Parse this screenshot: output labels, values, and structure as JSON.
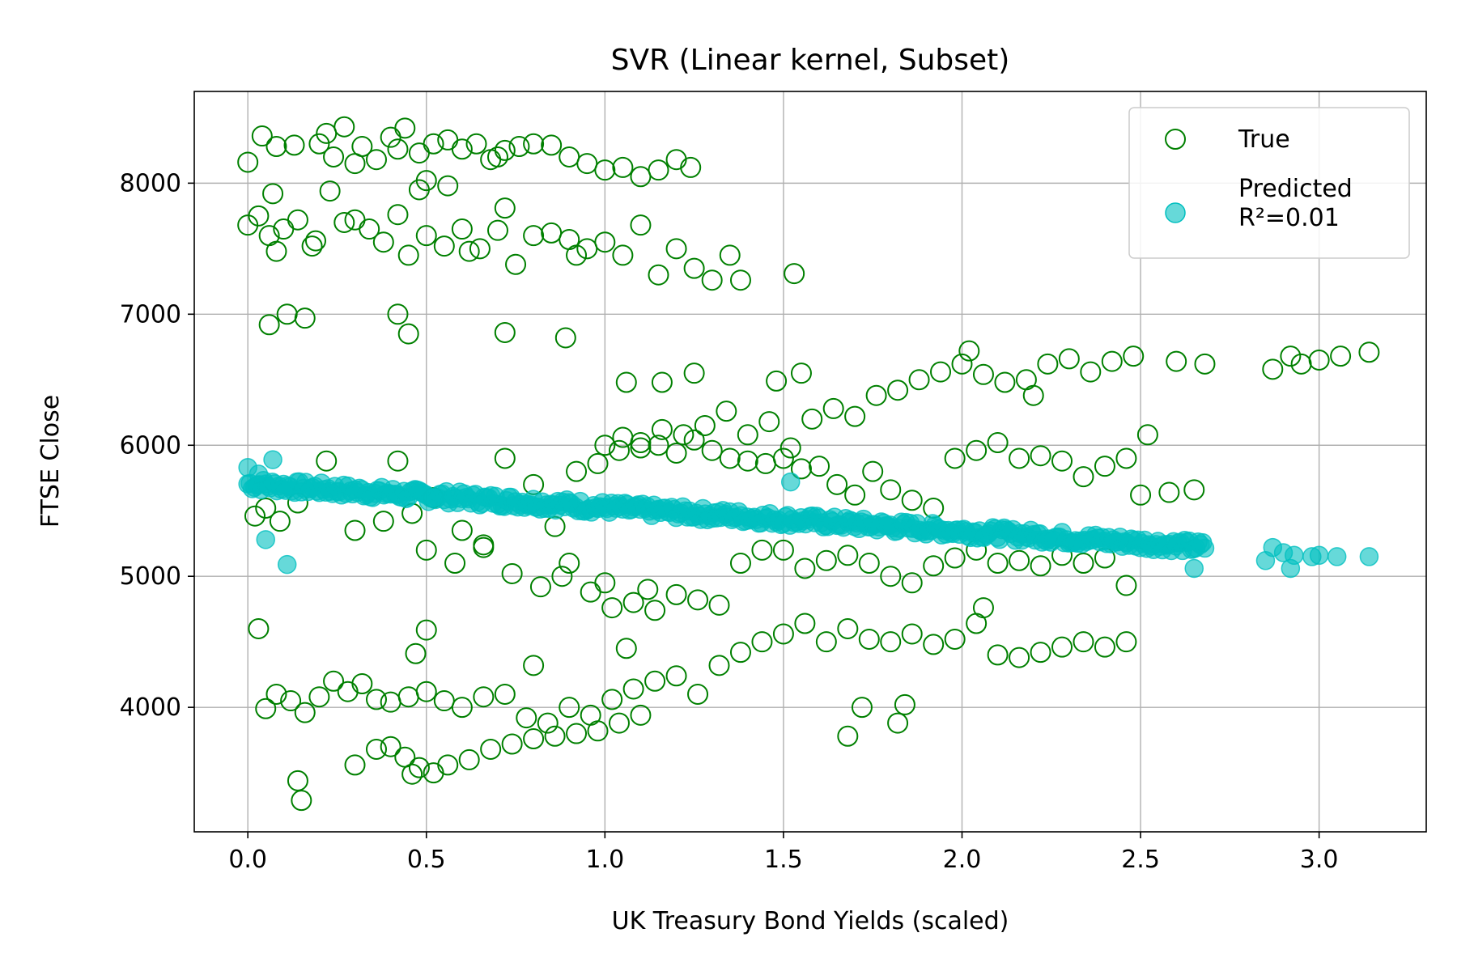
{
  "chart_data": {
    "type": "scatter",
    "title": "SVR (Linear kernel, Subset)",
    "xlabel": "UK Treasury Bond Yields (scaled)",
    "ylabel": "FTSE Close",
    "xlim": [
      -0.15,
      3.3
    ],
    "ylim": [
      3050,
      8700
    ],
    "xticks": [
      0.0,
      0.5,
      1.0,
      1.5,
      2.0,
      2.5,
      3.0
    ],
    "xtick_labels": [
      "0.0",
      "0.5",
      "1.0",
      "1.5",
      "2.0",
      "2.5",
      "3.0"
    ],
    "yticks": [
      4000,
      5000,
      6000,
      7000,
      8000
    ],
    "ytick_labels": [
      "4000",
      "5000",
      "6000",
      "7000",
      "8000"
    ],
    "grid": true,
    "legend_position": "top-right",
    "series": [
      {
        "name": "True",
        "marker": "open-circle",
        "color": "#008000",
        "points": [
          [
            0.0,
            8160
          ],
          [
            0.04,
            8360
          ],
          [
            0.08,
            8280
          ],
          [
            0.13,
            8290
          ],
          [
            0.2,
            8300
          ],
          [
            0.24,
            8200
          ],
          [
            0.27,
            8430
          ],
          [
            0.32,
            8280
          ],
          [
            0.36,
            8180
          ],
          [
            0.4,
            8350
          ],
          [
            0.44,
            8420
          ],
          [
            0.48,
            8230
          ],
          [
            0.52,
            8300
          ],
          [
            0.56,
            8330
          ],
          [
            0.6,
            8260
          ],
          [
            0.64,
            8300
          ],
          [
            0.68,
            8180
          ],
          [
            0.72,
            8250
          ],
          [
            0.76,
            8280
          ],
          [
            0.8,
            8300
          ],
          [
            0.85,
            8290
          ],
          [
            0.9,
            8200
          ],
          [
            0.95,
            8150
          ],
          [
            1.0,
            8100
          ],
          [
            1.05,
            8120
          ],
          [
            1.1,
            8050
          ],
          [
            1.15,
            8100
          ],
          [
            1.2,
            8180
          ],
          [
            1.24,
            8120
          ],
          [
            0.5,
            8020
          ],
          [
            0.56,
            7980
          ],
          [
            0.3,
            8150
          ],
          [
            0.22,
            8380
          ],
          [
            0.42,
            8260
          ],
          [
            0.7,
            8200
          ],
          [
            0.0,
            7680
          ],
          [
            0.03,
            7750
          ],
          [
            0.06,
            7600
          ],
          [
            0.1,
            7650
          ],
          [
            0.14,
            7720
          ],
          [
            0.19,
            7560
          ],
          [
            0.23,
            7940
          ],
          [
            0.27,
            7700
          ],
          [
            0.3,
            7720
          ],
          [
            0.34,
            7650
          ],
          [
            0.38,
            7550
          ],
          [
            0.42,
            7760
          ],
          [
            0.45,
            7450
          ],
          [
            0.5,
            7600
          ],
          [
            0.55,
            7520
          ],
          [
            0.6,
            7650
          ],
          [
            0.65,
            7500
          ],
          [
            0.7,
            7640
          ],
          [
            0.75,
            7380
          ],
          [
            0.8,
            7600
          ],
          [
            0.85,
            7620
          ],
          [
            0.9,
            7570
          ],
          [
            0.95,
            7500
          ],
          [
            1.0,
            7550
          ],
          [
            1.05,
            7450
          ],
          [
            1.1,
            7680
          ],
          [
            1.15,
            7300
          ],
          [
            1.2,
            7500
          ],
          [
            1.25,
            7350
          ],
          [
            1.3,
            7260
          ],
          [
            1.35,
            7450
          ],
          [
            1.38,
            7260
          ],
          [
            1.53,
            7310
          ],
          [
            0.07,
            7920
          ],
          [
            0.08,
            7480
          ],
          [
            0.18,
            7520
          ],
          [
            0.48,
            7950
          ],
          [
            0.62,
            7480
          ],
          [
            0.72,
            7810
          ],
          [
            0.92,
            7450
          ],
          [
            0.06,
            6920
          ],
          [
            0.11,
            7000
          ],
          [
            0.16,
            6970
          ],
          [
            0.42,
            7000
          ],
          [
            0.45,
            6850
          ],
          [
            0.72,
            6860
          ],
          [
            0.89,
            6820
          ],
          [
            0.02,
            5460
          ],
          [
            0.05,
            5520
          ],
          [
            0.09,
            5420
          ],
          [
            0.14,
            5560
          ],
          [
            0.22,
            5880
          ],
          [
            0.3,
            5350
          ],
          [
            0.38,
            5420
          ],
          [
            0.42,
            5880
          ],
          [
            0.46,
            5480
          ],
          [
            0.52,
            5600
          ],
          [
            0.6,
            5350
          ],
          [
            0.66,
            5220
          ],
          [
            0.72,
            5900
          ],
          [
            0.8,
            5700
          ],
          [
            0.86,
            5380
          ],
          [
            0.92,
            5800
          ],
          [
            0.98,
            5860
          ],
          [
            1.04,
            5960
          ],
          [
            1.1,
            6020
          ],
          [
            1.16,
            6120
          ],
          [
            1.22,
            6080
          ],
          [
            1.28,
            6150
          ],
          [
            1.34,
            6260
          ],
          [
            1.4,
            6080
          ],
          [
            1.46,
            6180
          ],
          [
            1.52,
            5980
          ],
          [
            1.58,
            6200
          ],
          [
            1.64,
            6280
          ],
          [
            1.7,
            6220
          ],
          [
            1.76,
            6380
          ],
          [
            1.82,
            6420
          ],
          [
            1.88,
            6500
          ],
          [
            1.94,
            6560
          ],
          [
            2.0,
            6620
          ],
          [
            2.06,
            6540
          ],
          [
            2.12,
            6480
          ],
          [
            2.18,
            6500
          ],
          [
            2.24,
            6620
          ],
          [
            2.3,
            6660
          ],
          [
            2.36,
            6560
          ],
          [
            2.42,
            6640
          ],
          [
            2.48,
            6680
          ],
          [
            2.6,
            6640
          ],
          [
            2.68,
            6620
          ],
          [
            2.87,
            6580
          ],
          [
            2.92,
            6680
          ],
          [
            2.95,
            6620
          ],
          [
            3.0,
            6650
          ],
          [
            3.06,
            6680
          ],
          [
            3.14,
            6710
          ],
          [
            0.5,
            5200
          ],
          [
            0.58,
            5100
          ],
          [
            0.66,
            5240
          ],
          [
            0.74,
            5020
          ],
          [
            0.82,
            4920
          ],
          [
            0.88,
            5000
          ],
          [
            0.96,
            4880
          ],
          [
            1.02,
            4760
          ],
          [
            1.08,
            4800
          ],
          [
            1.14,
            4740
          ],
          [
            1.2,
            4860
          ],
          [
            1.26,
            4820
          ],
          [
            1.32,
            4780
          ],
          [
            1.38,
            5100
          ],
          [
            1.44,
            5200
          ],
          [
            1.5,
            5200
          ],
          [
            1.56,
            5060
          ],
          [
            1.62,
            5120
          ],
          [
            1.68,
            5160
          ],
          [
            1.74,
            5100
          ],
          [
            1.8,
            5000
          ],
          [
            1.86,
            4950
          ],
          [
            1.92,
            5080
          ],
          [
            1.98,
            5140
          ],
          [
            2.04,
            5200
          ],
          [
            2.1,
            5100
          ],
          [
            2.16,
            5120
          ],
          [
            2.22,
            5080
          ],
          [
            2.28,
            5160
          ],
          [
            2.34,
            5100
          ],
          [
            2.4,
            5140
          ],
          [
            2.46,
            4930
          ],
          [
            0.9,
            5100
          ],
          [
            1.0,
            4950
          ],
          [
            1.12,
            4900
          ],
          [
            1.0,
            6000
          ],
          [
            1.05,
            6060
          ],
          [
            1.1,
            5980
          ],
          [
            1.15,
            6000
          ],
          [
            1.2,
            5940
          ],
          [
            1.25,
            6040
          ],
          [
            1.3,
            5960
          ],
          [
            1.35,
            5900
          ],
          [
            1.4,
            5880
          ],
          [
            1.45,
            5860
          ],
          [
            1.5,
            5900
          ],
          [
            1.55,
            5820
          ],
          [
            1.6,
            5840
          ],
          [
            1.65,
            5700
          ],
          [
            1.7,
            5620
          ],
          [
            1.75,
            5800
          ],
          [
            1.8,
            5660
          ],
          [
            1.86,
            5580
          ],
          [
            1.92,
            5520
          ],
          [
            1.98,
            5900
          ],
          [
            2.04,
            5960
          ],
          [
            2.1,
            6020
          ],
          [
            2.16,
            5900
          ],
          [
            2.22,
            5920
          ],
          [
            2.28,
            5880
          ],
          [
            2.34,
            5760
          ],
          [
            2.4,
            5840
          ],
          [
            2.46,
            5900
          ],
          [
            2.52,
            6080
          ],
          [
            2.58,
            5640
          ],
          [
            2.65,
            5660
          ],
          [
            2.5,
            5620
          ],
          [
            1.06,
            6480
          ],
          [
            1.16,
            6480
          ],
          [
            1.25,
            6550
          ],
          [
            1.48,
            6490
          ],
          [
            1.55,
            6550
          ],
          [
            2.02,
            6720
          ],
          [
            2.2,
            6380
          ],
          [
            0.03,
            4600
          ],
          [
            0.05,
            3990
          ],
          [
            0.08,
            4100
          ],
          [
            0.12,
            4050
          ],
          [
            0.16,
            3960
          ],
          [
            0.2,
            4080
          ],
          [
            0.24,
            4200
          ],
          [
            0.28,
            4120
          ],
          [
            0.32,
            4180
          ],
          [
            0.36,
            4060
          ],
          [
            0.4,
            4040
          ],
          [
            0.45,
            4080
          ],
          [
            0.5,
            4120
          ],
          [
            0.55,
            4050
          ],
          [
            0.6,
            4000
          ],
          [
            0.66,
            4080
          ],
          [
            0.72,
            4100
          ],
          [
            0.78,
            3920
          ],
          [
            0.84,
            3880
          ],
          [
            0.9,
            4000
          ],
          [
            0.96,
            3940
          ],
          [
            1.02,
            4060
          ],
          [
            1.08,
            4140
          ],
          [
            1.14,
            4200
          ],
          [
            1.2,
            4240
          ],
          [
            1.26,
            4100
          ],
          [
            1.32,
            4320
          ],
          [
            1.38,
            4420
          ],
          [
            1.44,
            4500
          ],
          [
            1.5,
            4560
          ],
          [
            1.56,
            4640
          ],
          [
            1.62,
            4500
          ],
          [
            1.68,
            4600
          ],
          [
            1.74,
            4520
          ],
          [
            1.8,
            4500
          ],
          [
            1.86,
            4560
          ],
          [
            1.92,
            4480
          ],
          [
            1.98,
            4520
          ],
          [
            2.04,
            4640
          ],
          [
            2.1,
            4400
          ],
          [
            2.16,
            4380
          ],
          [
            2.22,
            4420
          ],
          [
            2.28,
            4460
          ],
          [
            2.34,
            4500
          ],
          [
            2.4,
            4460
          ],
          [
            2.46,
            4500
          ],
          [
            0.47,
            4410
          ],
          [
            0.5,
            4590
          ],
          [
            0.8,
            4320
          ],
          [
            1.06,
            4450
          ],
          [
            1.68,
            3780
          ],
          [
            1.72,
            4000
          ],
          [
            1.82,
            3880
          ],
          [
            1.84,
            4020
          ],
          [
            2.06,
            4760
          ],
          [
            0.3,
            3560
          ],
          [
            0.36,
            3680
          ],
          [
            0.4,
            3700
          ],
          [
            0.44,
            3620
          ],
          [
            0.48,
            3540
          ],
          [
            0.52,
            3500
          ],
          [
            0.56,
            3560
          ],
          [
            0.62,
            3600
          ],
          [
            0.68,
            3680
          ],
          [
            0.74,
            3720
          ],
          [
            0.8,
            3760
          ],
          [
            0.86,
            3780
          ],
          [
            0.92,
            3800
          ],
          [
            0.98,
            3820
          ],
          [
            1.04,
            3880
          ],
          [
            1.1,
            3940
          ],
          [
            0.14,
            3440
          ],
          [
            0.15,
            3290
          ],
          [
            0.46,
            3490
          ]
        ]
      },
      {
        "name": "Predicted\nR²=0.01",
        "label_lines": [
          "Predicted",
          "R²=0.01"
        ],
        "marker": "filled-circle",
        "color": "#00bfbf",
        "trend": {
          "intercept": 5705,
          "slope": -180,
          "x_max": 2.68,
          "jitter": 90
        },
        "extra_points": [
          [
            0.07,
            5890
          ],
          [
            0.05,
            5280
          ],
          [
            0.11,
            5090
          ],
          [
            0.0,
            5830
          ],
          [
            0.03,
            5780
          ],
          [
            2.85,
            5120
          ],
          [
            2.87,
            5220
          ],
          [
            2.9,
            5180
          ],
          [
            2.93,
            5160
          ],
          [
            2.98,
            5150
          ],
          [
            3.0,
            5160
          ],
          [
            3.05,
            5150
          ],
          [
            3.14,
            5150
          ],
          [
            2.65,
            5060
          ],
          [
            2.92,
            5060
          ],
          [
            1.52,
            5720
          ]
        ]
      }
    ]
  }
}
